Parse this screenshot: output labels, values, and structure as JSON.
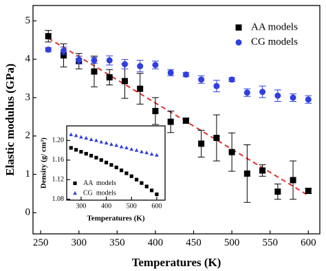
{
  "chart_data": [
    {
      "type": "scatter",
      "xlabel": "Temperatures (K)",
      "ylabel": "Elastic modulus (GPa)",
      "xlim": [
        240,
        615
      ],
      "ylim": [
        -0.55,
        5.4
      ],
      "xticks": [
        250,
        300,
        350,
        400,
        450,
        500,
        550,
        600
      ],
      "yticks": [
        0,
        1,
        2,
        3,
        4,
        5
      ],
      "legend": "upper right",
      "x": [
        260,
        280,
        300,
        320,
        340,
        360,
        380,
        400,
        420,
        440,
        460,
        480,
        500,
        520,
        540,
        560,
        580,
        600
      ],
      "series": [
        {
          "name": "AA models",
          "color": "#000000",
          "marker": "square",
          "values": [
            4.6,
            4.1,
            3.95,
            3.68,
            3.53,
            3.43,
            3.23,
            2.65,
            2.37,
            2.4,
            1.8,
            1.95,
            1.58,
            1.02,
            1.1,
            0.55,
            0.85,
            0.57
          ],
          "errors": [
            0.15,
            0.3,
            0.2,
            0.4,
            0.2,
            0.45,
            0.4,
            0.35,
            0.28,
            0.07,
            0.35,
            0.6,
            0.5,
            0.75,
            0.15,
            0.2,
            0.5,
            0.07
          ]
        },
        {
          "name": "CG models",
          "color": "#2f3fe0",
          "marker": "circle",
          "values": [
            4.25,
            4.22,
            3.98,
            3.97,
            3.97,
            3.87,
            3.82,
            3.85,
            3.65,
            3.6,
            3.47,
            3.3,
            3.47,
            3.13,
            3.15,
            3.05,
            3.0,
            2.95
          ],
          "errors": [
            0.05,
            0.1,
            0.1,
            0.08,
            0.12,
            0.12,
            0.15,
            0.1,
            0.08,
            0.05,
            0.1,
            0.15,
            0.05,
            0.1,
            0.15,
            0.15,
            0.1,
            0.1
          ]
        }
      ],
      "fit": {
        "x": [
          260,
          600
        ],
        "values": [
          4.55,
          0.45
        ],
        "color": "#e03030"
      }
    },
    {
      "type": "scatter",
      "xlabel": "Temperatures (K)",
      "ylabel": "Density (g/ cm³)",
      "xlim": [
        243,
        633
      ],
      "ylim": [
        1.078,
        1.23
      ],
      "xticks": [
        300,
        400,
        500,
        600
      ],
      "yticks": [
        1.08,
        1.12,
        1.16,
        {
          "value": 1.2,
          "label": "1.20"
        }
      ],
      "legend": "lower left",
      "x": [
        260,
        280,
        300,
        320,
        340,
        360,
        380,
        400,
        420,
        440,
        460,
        480,
        500,
        520,
        540,
        560,
        580,
        600
      ],
      "series": [
        {
          "name": "AA  models",
          "color": "#000000",
          "marker": "square",
          "values": [
            1.185,
            1.181,
            1.177,
            1.173,
            1.169,
            1.165,
            1.16,
            1.155,
            1.15,
            1.145,
            1.139,
            1.133,
            1.127,
            1.12,
            1.113,
            1.106,
            1.098,
            1.09
          ]
        },
        {
          "name": "CG  models",
          "color": "#2f3fe0",
          "marker": "triangle",
          "values": [
            1.212,
            1.21,
            1.207,
            1.205,
            1.202,
            1.2,
            1.197,
            1.195,
            1.192,
            1.19,
            1.187,
            1.185,
            1.182,
            1.18,
            1.177,
            1.175,
            1.172,
            1.17
          ]
        }
      ]
    }
  ]
}
